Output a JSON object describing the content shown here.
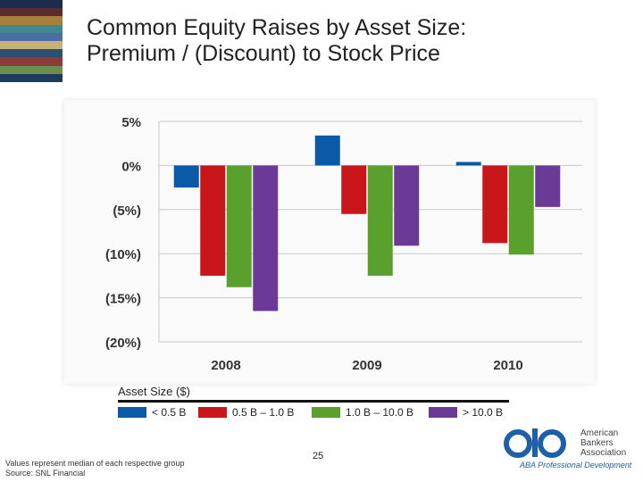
{
  "slide": {
    "title_line1": "Common Equity Raises by Asset Size:",
    "title_line2": "Premium / (Discount) to Stock Price",
    "page_number": "25",
    "note_line1": "Values represent median of each respective group",
    "note_line2": "Source: SNL Financial"
  },
  "colors": {
    "stripes": [
      "#1a2d4e",
      "#5a2c2c",
      "#a87f38",
      "#3e8a8f",
      "#4a6fa0",
      "#c8b07a",
      "#2d4f70",
      "#8c3b3b",
      "#6c8f4a",
      "#1f3a5f"
    ]
  },
  "chart_data": {
    "type": "bar",
    "title": "",
    "xlabel": "",
    "ylabel": "",
    "ylim": [
      -20,
      5
    ],
    "ytick_values": [
      5,
      0,
      -5,
      -10,
      -15,
      -20
    ],
    "ytick_labels": [
      "5%",
      "0%",
      "(5%)",
      "(10%)",
      "(15%)",
      "(20%)"
    ],
    "categories": [
      "2008",
      "2009",
      "2010"
    ],
    "series": [
      {
        "name": "< 0.5 B",
        "color": "#0a5aa8",
        "values": [
          -2.5,
          3.4,
          0.4
        ]
      },
      {
        "name": "0.5 B – 1.0 B",
        "color": "#c8161b",
        "values": [
          -12.5,
          -5.5,
          -8.8
        ]
      },
      {
        "name": "1.0 B – 10.0 B",
        "color": "#5aa02c",
        "values": [
          -13.8,
          -12.5,
          -10.1
        ]
      },
      {
        "name": "> 10.0 B",
        "color": "#6b3a96",
        "values": [
          -16.5,
          -9.1,
          -4.7
        ]
      }
    ],
    "legend_title": "Asset Size ($)",
    "grid": true,
    "legend_position": "bottom"
  },
  "logo": {
    "name_line1": "American",
    "name_line2": "Bankers",
    "name_line3": "Association",
    "subtitle": "ABA Professional Development",
    "color": "#1f5fa8"
  }
}
